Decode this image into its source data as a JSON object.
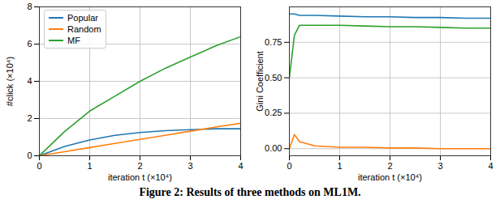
{
  "chart_data": [
    {
      "type": "line",
      "xlabel": "iteration t (×10⁴)",
      "ylabel": "#click (×10⁴)",
      "x": [
        0,
        0.5,
        1,
        1.5,
        2,
        2.5,
        3,
        3.5,
        4
      ],
      "xlim": [
        0,
        4
      ],
      "xticks": [
        0,
        1,
        2,
        3,
        4
      ],
      "ylim": [
        0,
        8
      ],
      "yticks": [
        0,
        2,
        4,
        6,
        8
      ],
      "grid": true,
      "legend": "upper left",
      "series": [
        {
          "name": "Popular",
          "color": "#1f77b4",
          "values": [
            0,
            0.5,
            0.85,
            1.1,
            1.25,
            1.35,
            1.4,
            1.45,
            1.45
          ]
        },
        {
          "name": "Random",
          "color": "#ff7f0e",
          "values": [
            0,
            0.22,
            0.44,
            0.66,
            0.88,
            1.1,
            1.32,
            1.54,
            1.75
          ]
        },
        {
          "name": "MF",
          "color": "#2ca02c",
          "values": [
            0,
            1.3,
            2.4,
            3.2,
            4.0,
            4.7,
            5.3,
            5.9,
            6.4
          ]
        }
      ]
    },
    {
      "type": "line",
      "xlabel": "iteration t (×10⁴)",
      "ylabel": "Gini Coefficient",
      "x": [
        0,
        0.1,
        0.2,
        0.5,
        1,
        1.5,
        2,
        2.5,
        3,
        3.5,
        4
      ],
      "xlim": [
        0,
        4
      ],
      "xticks": [
        0,
        1,
        2,
        3,
        4
      ],
      "ylim": [
        -0.05,
        1.0
      ],
      "yticks": [
        {
          "value": 0,
          "label": "0.00"
        },
        {
          "value": 0.25,
          "label": "0.25"
        },
        {
          "value": 0.5,
          "label": "0.50"
        },
        {
          "value": 0.75,
          "label": "0.75"
        }
      ],
      "grid": true,
      "series": [
        {
          "name": "Popular",
          "color": "#1f77b4",
          "values": [
            0.95,
            0.95,
            0.94,
            0.94,
            0.935,
            0.93,
            0.93,
            0.925,
            0.925,
            0.92,
            0.92
          ]
        },
        {
          "name": "Random",
          "color": "#ff7f0e",
          "values": [
            0.0,
            0.1,
            0.05,
            0.02,
            0.01,
            0.01,
            0.005,
            0.005,
            0.0,
            0.0,
            0.0
          ]
        },
        {
          "name": "MF",
          "color": "#2ca02c",
          "values": [
            0.5,
            0.8,
            0.87,
            0.87,
            0.87,
            0.865,
            0.86,
            0.86,
            0.855,
            0.85,
            0.85
          ]
        }
      ]
    }
  ],
  "caption": "Figure 2: Results of three methods on ML1M."
}
